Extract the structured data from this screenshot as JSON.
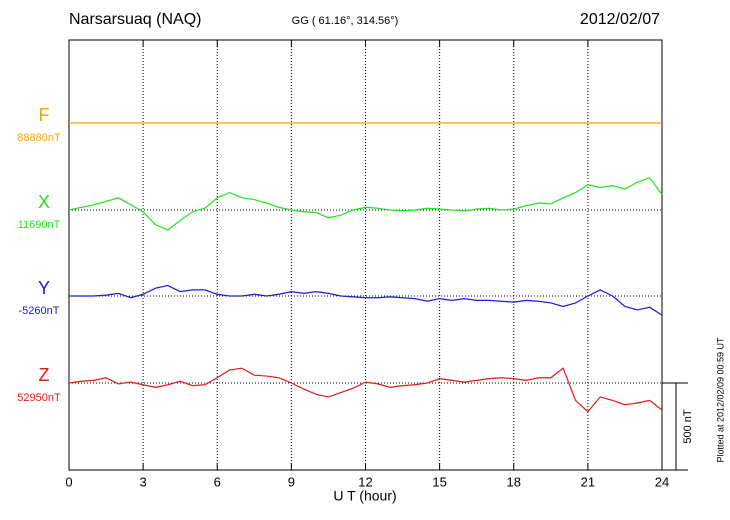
{
  "chart_data": {
    "type": "line",
    "title": "Narsarsuaq (NAQ)",
    "subtitle": "GG ( 61.16°, 314.56°)",
    "date": "2012/02/07",
    "x_label": "U T (hour)",
    "footnote": "Plotted at 2012/02/09 00:59 UT",
    "scale_bar": {
      "value": 500,
      "label": "500 nT"
    },
    "xlim": [
      0,
      24
    ],
    "xticks": [
      0,
      3,
      6,
      9,
      12,
      15,
      18,
      21,
      24
    ],
    "grid": true,
    "x": [
      0,
      0.5,
      1,
      1.5,
      2,
      2.5,
      3,
      3.5,
      4,
      4.5,
      5,
      5.5,
      6,
      6.5,
      7,
      7.5,
      8,
      8.5,
      9,
      9.5,
      10,
      10.5,
      11,
      11.5,
      12,
      12.5,
      13,
      13.5,
      14,
      14.5,
      15,
      15.5,
      16,
      16.5,
      17,
      17.5,
      18,
      18.5,
      19,
      19.5,
      20,
      20.5,
      21,
      21.5,
      22,
      22.5,
      23,
      23.5,
      24
    ],
    "series": [
      {
        "name": "F",
        "color": "#f5a500",
        "baseline": {
          "value": 88880,
          "label": "88880nT"
        },
        "values": [
          88880,
          88880,
          88880,
          88880,
          88880,
          88880,
          88880,
          88880,
          88880,
          88880,
          88880,
          88880,
          88880,
          88880,
          88880,
          88880,
          88880,
          88880,
          88880,
          88880,
          88880,
          88880,
          88880,
          88880,
          88880,
          88880,
          88880,
          88880,
          88880,
          88880,
          88880,
          88880,
          88880,
          88880,
          88880,
          88880,
          88880,
          88880,
          88880,
          88880,
          88880,
          88880,
          88880,
          88880,
          88880,
          88880,
          88880,
          88880,
          88880
        ]
      },
      {
        "name": "X",
        "color": "#22e022",
        "baseline": {
          "value": 11690,
          "label": "11690nT"
        },
        "values": [
          11690,
          11705,
          11720,
          11740,
          11760,
          11720,
          11680,
          11605,
          11575,
          11630,
          11680,
          11700,
          11760,
          11790,
          11760,
          11750,
          11730,
          11705,
          11690,
          11680,
          11675,
          11645,
          11660,
          11690,
          11705,
          11700,
          11690,
          11685,
          11690,
          11700,
          11695,
          11690,
          11685,
          11695,
          11700,
          11690,
          11695,
          11715,
          11730,
          11725,
          11760,
          11790,
          11835,
          11820,
          11830,
          11810,
          11850,
          11875,
          11780
        ]
      },
      {
        "name": "Y",
        "color": "#1a1adc",
        "baseline": {
          "value": -5260,
          "label": "-5260nT"
        },
        "values": [
          -5260,
          -5260,
          -5260,
          -5255,
          -5245,
          -5270,
          -5250,
          -5215,
          -5200,
          -5235,
          -5225,
          -5225,
          -5250,
          -5260,
          -5260,
          -5250,
          -5260,
          -5250,
          -5235,
          -5245,
          -5235,
          -5245,
          -5260,
          -5265,
          -5270,
          -5270,
          -5265,
          -5270,
          -5275,
          -5290,
          -5275,
          -5285,
          -5275,
          -5285,
          -5285,
          -5290,
          -5295,
          -5285,
          -5290,
          -5300,
          -5320,
          -5300,
          -5260,
          -5225,
          -5260,
          -5320,
          -5340,
          -5325,
          -5370
        ]
      },
      {
        "name": "Z",
        "color": "#e01a1a",
        "baseline": {
          "value": 52950,
          "label": "52950nT"
        },
        "values": [
          52950,
          52960,
          52965,
          52980,
          52945,
          52955,
          52940,
          52925,
          52940,
          52960,
          52935,
          52940,
          52980,
          53025,
          53035,
          52995,
          52990,
          52980,
          52950,
          52915,
          52885,
          52870,
          52895,
          52920,
          52955,
          52945,
          52925,
          52935,
          52940,
          52950,
          52975,
          52965,
          52955,
          52965,
          52975,
          52980,
          52975,
          52965,
          52980,
          52980,
          53035,
          52850,
          52785,
          52870,
          52850,
          52825,
          52835,
          52850,
          52795
        ]
      }
    ]
  }
}
